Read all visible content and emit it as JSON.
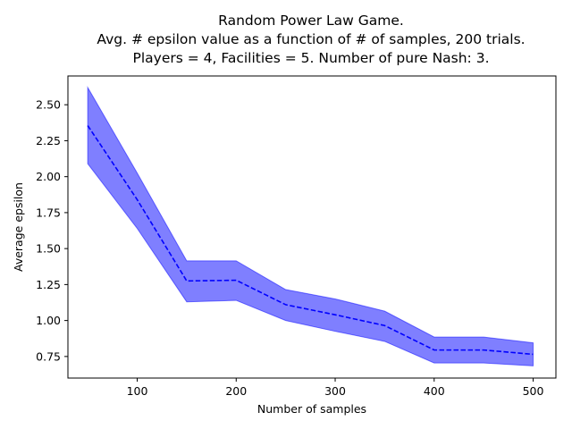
{
  "chart_data": {
    "type": "line",
    "title_lines": [
      "Random Power Law Game.",
      "Avg. # epsilon value as a function of # of samples, 200 trials.",
      "Players = 4, Facilities = 5. Number of pure Nash: 3."
    ],
    "xlabel": "Number of samples",
    "ylabel": "Average epsilon",
    "xlim": [
      30,
      523
    ],
    "ylim": [
      0.6,
      2.7
    ],
    "x_ticks": [
      100,
      200,
      300,
      400,
      500
    ],
    "x_tick_labels": [
      "100",
      "200",
      "300",
      "400",
      "500"
    ],
    "y_ticks": [
      0.75,
      1.0,
      1.25,
      1.5,
      1.75,
      2.0,
      2.25,
      2.5
    ],
    "y_tick_labels": [
      "0.75",
      "1.00",
      "1.25",
      "1.50",
      "1.75",
      "2.00",
      "2.25",
      "2.50"
    ],
    "grid": false,
    "x": [
      50,
      100,
      150,
      200,
      250,
      300,
      350,
      400,
      450,
      500
    ],
    "series": [
      {
        "values": [
          2.355,
          1.84,
          1.275,
          1.28,
          1.11,
          1.04,
          0.965,
          0.795,
          0.795,
          0.765
        ],
        "lower": [
          2.09,
          1.64,
          1.13,
          1.14,
          1.0,
          0.925,
          0.855,
          0.705,
          0.705,
          0.685
        ],
        "upper": [
          2.62,
          2.025,
          1.415,
          1.415,
          1.215,
          1.15,
          1.065,
          0.885,
          0.885,
          0.845
        ],
        "line_color": "#0000ff",
        "line_style": "dashed",
        "band_color": "#0000ff",
        "band_opacity": 0.5
      }
    ]
  }
}
